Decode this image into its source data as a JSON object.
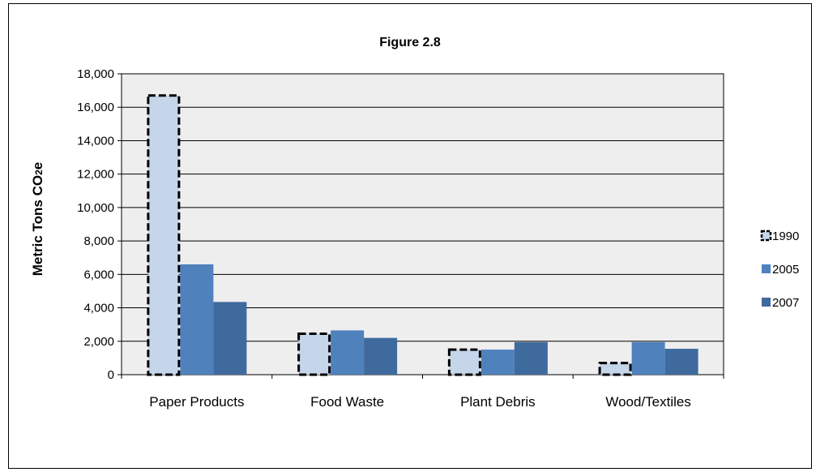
{
  "chart_data": {
    "type": "bar",
    "title": "Figure 2.8",
    "xlabel": "",
    "ylabel_main": "Metric Tons CO",
    "ylabel_sub": "2",
    "ylabel_tail": "e",
    "ylim": [
      0,
      18000
    ],
    "yticks": [
      0,
      2000,
      4000,
      6000,
      8000,
      10000,
      12000,
      14000,
      16000,
      18000
    ],
    "ytick_labels": [
      "0",
      "2,000",
      "4,000",
      "6,000",
      "8,000",
      "10,000",
      "12,000",
      "14,000",
      "16,000",
      "18,000"
    ],
    "categories": [
      "Paper Products",
      "Food Waste",
      "Plant Debris",
      "Wood/Textiles"
    ],
    "series": [
      {
        "name": "1990",
        "values": [
          16700,
          2450,
          1500,
          700
        ],
        "color": "#c5d5ea",
        "style": "dashed-outline"
      },
      {
        "name": "2005",
        "values": [
          6600,
          2650,
          1500,
          1950
        ],
        "color": "#4f81bd",
        "style": "solid"
      },
      {
        "name": "2007",
        "values": [
          4350,
          2200,
          1950,
          1550
        ],
        "color": "#3f6a9e",
        "style": "solid"
      }
    ],
    "grid": true,
    "legend_position": "right",
    "plot_background": "#eeeeee"
  }
}
